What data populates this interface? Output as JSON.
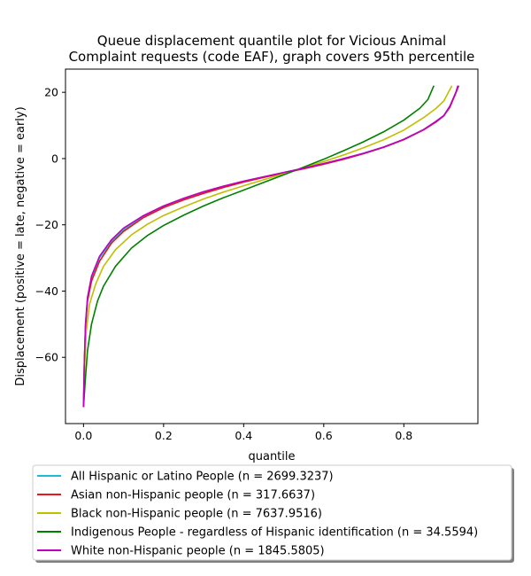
{
  "chart_data": {
    "type": "line",
    "title_lines": [
      "Queue displacement quantile plot for Vicious Animal",
      "Complaint  requests (code EAF), graph covers 95th percentile"
    ],
    "xlabel": "quantile",
    "ylabel": "Displacement (positive = late, negative = early)",
    "xlim": [
      -0.045,
      0.985
    ],
    "ylim": [
      -80,
      27
    ],
    "xticks": [
      0.0,
      0.2,
      0.4,
      0.6,
      0.8
    ],
    "xtick_labels": [
      "0.0",
      "0.2",
      "0.4",
      "0.6",
      "0.8"
    ],
    "yticks": [
      20,
      0,
      -20,
      -40,
      -60
    ],
    "ytick_labels": [
      "20",
      "0",
      "−20",
      "−40",
      "−60"
    ],
    "grid": false,
    "legend_position": "below",
    "series": [
      {
        "name": "All Hispanic or Latino People (n = 2699.3237)",
        "color": "#17becf",
        "points": [
          [
            0.0,
            -75
          ],
          [
            0.002,
            -62
          ],
          [
            0.005,
            -50
          ],
          [
            0.01,
            -42
          ],
          [
            0.02,
            -36
          ],
          [
            0.04,
            -30
          ],
          [
            0.07,
            -25
          ],
          [
            0.1,
            -21.5
          ],
          [
            0.15,
            -17.5
          ],
          [
            0.2,
            -14.5
          ],
          [
            0.25,
            -12.2
          ],
          [
            0.3,
            -10.2
          ],
          [
            0.35,
            -8.4
          ],
          [
            0.4,
            -6.9
          ],
          [
            0.45,
            -5.5
          ],
          [
            0.5,
            -4.2
          ],
          [
            0.55,
            -2.9
          ],
          [
            0.6,
            -1.5
          ],
          [
            0.65,
            0.0
          ],
          [
            0.7,
            1.6
          ],
          [
            0.75,
            3.5
          ],
          [
            0.8,
            5.8
          ],
          [
            0.85,
            8.8
          ],
          [
            0.88,
            11.2
          ],
          [
            0.9,
            13.0
          ],
          [
            0.915,
            15.8
          ],
          [
            0.93,
            20.0
          ],
          [
            0.937,
            22.0
          ]
        ]
      },
      {
        "name": "Asian non-Hispanic people (n = 317.6637)",
        "color": "#e8171c",
        "points": [
          [
            0.0,
            -75
          ],
          [
            0.002,
            -62
          ],
          [
            0.005,
            -51
          ],
          [
            0.01,
            -43
          ],
          [
            0.02,
            -37
          ],
          [
            0.04,
            -31
          ],
          [
            0.07,
            -25.5
          ],
          [
            0.1,
            -22
          ],
          [
            0.15,
            -17.8
          ],
          [
            0.2,
            -14.8
          ],
          [
            0.25,
            -12.5
          ],
          [
            0.3,
            -10.5
          ],
          [
            0.35,
            -8.7
          ],
          [
            0.4,
            -7.1
          ],
          [
            0.45,
            -5.7
          ],
          [
            0.5,
            -4.4
          ],
          [
            0.55,
            -3.1
          ],
          [
            0.6,
            -1.7
          ],
          [
            0.65,
            -0.2
          ],
          [
            0.7,
            1.5
          ],
          [
            0.75,
            3.4
          ],
          [
            0.8,
            5.7
          ],
          [
            0.85,
            8.7
          ],
          [
            0.88,
            11.0
          ],
          [
            0.9,
            12.9
          ],
          [
            0.915,
            15.5
          ],
          [
            0.93,
            19.8
          ],
          [
            0.937,
            22.0
          ]
        ]
      },
      {
        "name": "Black non-Hispanic people (n = 7637.9516)",
        "color": "#bfbf00",
        "points": [
          [
            0.0,
            -75
          ],
          [
            0.003,
            -62
          ],
          [
            0.007,
            -52
          ],
          [
            0.015,
            -44
          ],
          [
            0.03,
            -38
          ],
          [
            0.05,
            -32.5
          ],
          [
            0.08,
            -27.5
          ],
          [
            0.12,
            -23
          ],
          [
            0.16,
            -19.8
          ],
          [
            0.2,
            -17.2
          ],
          [
            0.25,
            -14.6
          ],
          [
            0.3,
            -12.2
          ],
          [
            0.35,
            -10.1
          ],
          [
            0.4,
            -8.2
          ],
          [
            0.45,
            -6.4
          ],
          [
            0.5,
            -4.6
          ],
          [
            0.55,
            -2.8
          ],
          [
            0.6,
            -0.9
          ],
          [
            0.65,
            1.1
          ],
          [
            0.7,
            3.3
          ],
          [
            0.75,
            5.7
          ],
          [
            0.8,
            8.6
          ],
          [
            0.85,
            12.4
          ],
          [
            0.88,
            15.1
          ],
          [
            0.9,
            17.4
          ],
          [
            0.92,
            22.0
          ]
        ]
      },
      {
        "name": "Indigenous People - regardless of Hispanic identification (n = 34.5594)",
        "color": "#008000",
        "points": [
          [
            0.0,
            -75
          ],
          [
            0.005,
            -66
          ],
          [
            0.01,
            -58
          ],
          [
            0.02,
            -50
          ],
          [
            0.035,
            -43
          ],
          [
            0.05,
            -38.5
          ],
          [
            0.08,
            -32.5
          ],
          [
            0.12,
            -27
          ],
          [
            0.16,
            -23.2
          ],
          [
            0.2,
            -20.2
          ],
          [
            0.25,
            -17.1
          ],
          [
            0.3,
            -14.3
          ],
          [
            0.35,
            -11.8
          ],
          [
            0.4,
            -9.5
          ],
          [
            0.45,
            -7.2
          ],
          [
            0.5,
            -4.9
          ],
          [
            0.55,
            -2.6
          ],
          [
            0.6,
            -0.2
          ],
          [
            0.65,
            2.4
          ],
          [
            0.7,
            5.1
          ],
          [
            0.75,
            8.1
          ],
          [
            0.8,
            11.6
          ],
          [
            0.84,
            15.2
          ],
          [
            0.86,
            17.8
          ],
          [
            0.875,
            22.0
          ]
        ]
      },
      {
        "name": "White non-Hispanic people (n = 1845.5805)",
        "color": "#bf00bf",
        "points": [
          [
            0.0,
            -75
          ],
          [
            0.002,
            -62
          ],
          [
            0.005,
            -50
          ],
          [
            0.01,
            -42
          ],
          [
            0.02,
            -35.5
          ],
          [
            0.04,
            -29.5
          ],
          [
            0.07,
            -24.5
          ],
          [
            0.1,
            -21
          ],
          [
            0.15,
            -17.2
          ],
          [
            0.2,
            -14.3
          ],
          [
            0.25,
            -12.0
          ],
          [
            0.3,
            -10.0
          ],
          [
            0.35,
            -8.3
          ],
          [
            0.4,
            -6.8
          ],
          [
            0.45,
            -5.5
          ],
          [
            0.5,
            -4.2
          ],
          [
            0.55,
            -2.9
          ],
          [
            0.6,
            -1.5
          ],
          [
            0.65,
            0.0
          ],
          [
            0.7,
            1.6
          ],
          [
            0.75,
            3.5
          ],
          [
            0.8,
            5.8
          ],
          [
            0.85,
            8.8
          ],
          [
            0.88,
            11.2
          ],
          [
            0.9,
            13.0
          ],
          [
            0.915,
            15.8
          ],
          [
            0.93,
            20.0
          ],
          [
            0.935,
            22.0
          ]
        ]
      }
    ]
  }
}
